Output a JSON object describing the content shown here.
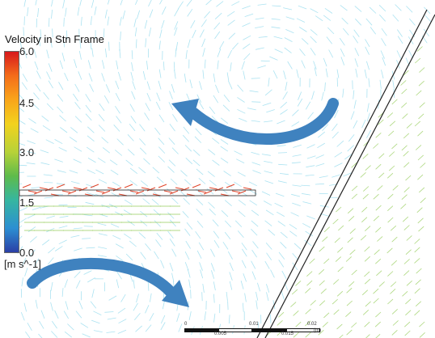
{
  "legend": {
    "title": "Velocity in Stn Frame",
    "ticks": [
      "6.0",
      "4.5",
      "3.0",
      "1.5",
      "0.0"
    ],
    "unit": "[m s^-1]"
  },
  "scale_bar": {
    "labels": [
      "0",
      "0.01",
      "0.02",
      "(m)",
      "0.005",
      "0.015"
    ]
  },
  "colors": {
    "curl_arrow": "#3f82bf",
    "vector_low": "#7fd4ea",
    "vector_mid": "#8cc84b",
    "vector_high": "#e0452a",
    "wall": "#222222"
  },
  "icons": [
    "clockwise-flow-arrow-icon",
    "counterclockwise-flow-arrow-icon"
  ]
}
